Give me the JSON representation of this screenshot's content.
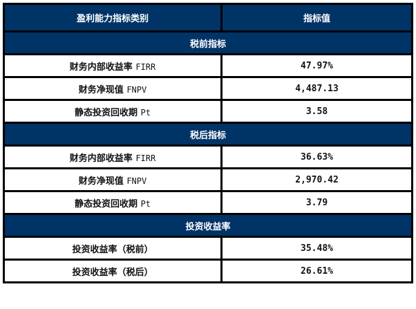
{
  "header": {
    "col1": "盈利能力指标类别",
    "col2": "指标值"
  },
  "sections": [
    {
      "title": "税前指标",
      "rows": [
        {
          "label": "财务内部收益率",
          "suffix": "FIRR",
          "value": "47.97%"
        },
        {
          "label": "财务净现值",
          "suffix": "FNPV",
          "value": "4,487.13"
        },
        {
          "label": "静态投资回收期",
          "suffix": "Pt",
          "value": "3.58"
        }
      ]
    },
    {
      "title": "税后指标",
      "rows": [
        {
          "label": "财务内部收益率",
          "suffix": "FIRR",
          "value": "36.63%"
        },
        {
          "label": "财务净现值",
          "suffix": "FNPV",
          "value": "2,970.42"
        },
        {
          "label": "静态投资回收期",
          "suffix": "Pt",
          "value": "3.79"
        }
      ]
    },
    {
      "title": "投资收益率",
      "rows": [
        {
          "label": "投资收益率（税前）",
          "suffix": "",
          "value": "35.48%"
        },
        {
          "label": "投资收益率（税后）",
          "suffix": "",
          "value": "26.61%"
        }
      ]
    }
  ],
  "colors": {
    "header_bg": "#003366",
    "header_text": "#ffffff",
    "border": "#000000"
  }
}
